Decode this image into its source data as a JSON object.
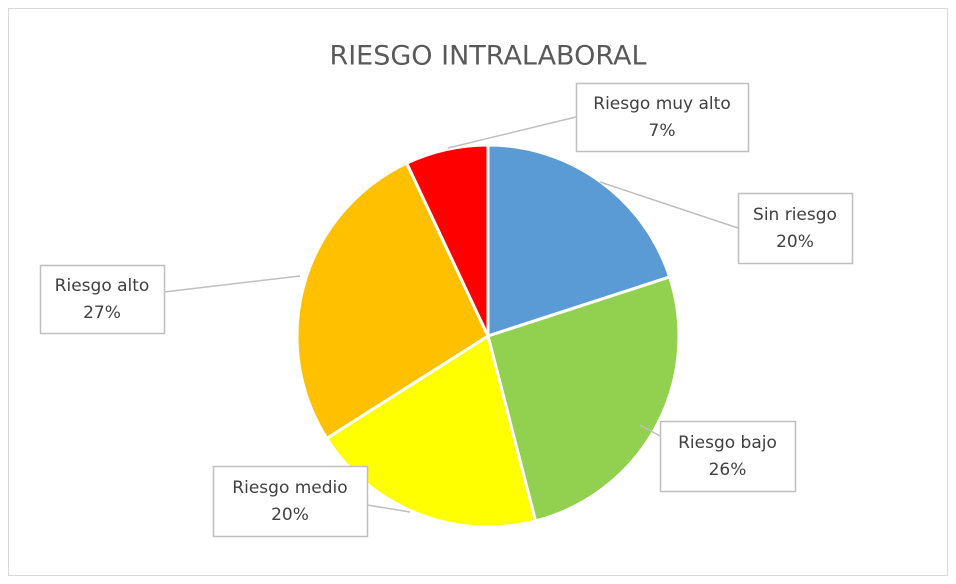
{
  "chart_data": {
    "type": "pie",
    "title": "RIESGO INTRALABORAL",
    "categories": [
      "Sin riesgo",
      "Riesgo bajo",
      "Riesgo medio",
      "Riesgo alto",
      "Riesgo muy alto"
    ],
    "values": [
      20,
      26,
      20,
      27,
      7
    ],
    "value_labels": [
      "20%",
      "26%",
      "20%",
      "27%",
      "7%"
    ],
    "colors": [
      "#5b9bd5",
      "#92d050",
      "#ffff00",
      "#ffc000",
      "#ff0000"
    ]
  }
}
